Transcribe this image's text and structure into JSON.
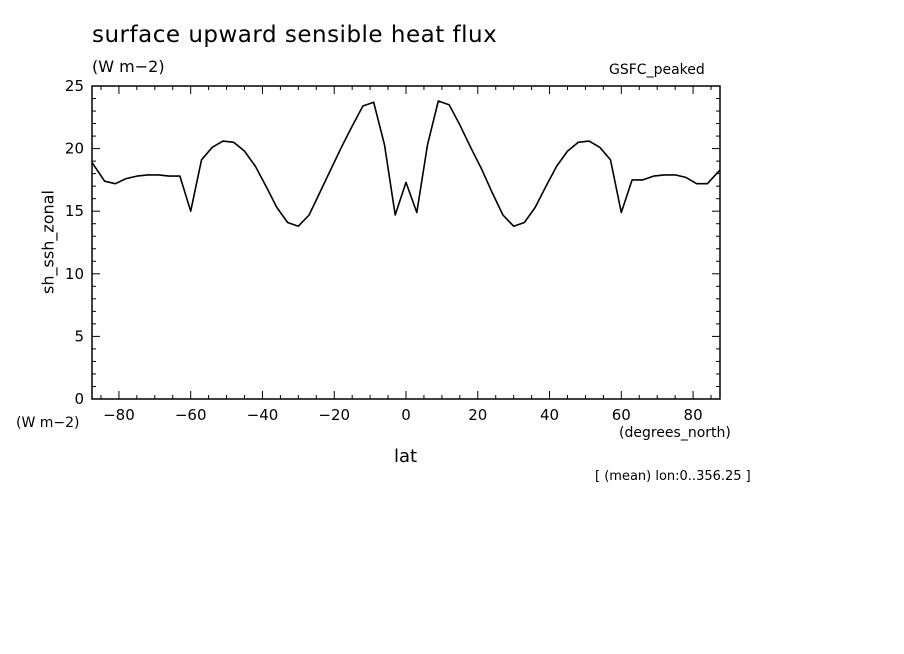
{
  "chart_data": {
    "type": "line",
    "title": "surface upward sensible heat flux",
    "units_label": "(W m−2)",
    "units_label_left": "(W m−2)",
    "dataset_label": "GSFC_peaked",
    "ylabel": "sh_ssh_zonal",
    "xlabel": "lat",
    "x_units_label": "(degrees_north)",
    "footnote": "[ (mean) lon:0..356.25 ]",
    "xlim": [
      -87.5,
      87.5
    ],
    "ylim": [
      0,
      25
    ],
    "x_ticks": [
      -80,
      -60,
      -40,
      -20,
      0,
      20,
      40,
      60,
      80
    ],
    "x_tick_labels": [
      "−80",
      "−60",
      "−40",
      "−20",
      "0",
      "20",
      "40",
      "60",
      "80"
    ],
    "y_ticks": [
      0,
      5,
      10,
      15,
      20,
      25
    ],
    "y_tick_labels": [
      "0",
      "5",
      "10",
      "15",
      "20",
      "25"
    ],
    "grid": false,
    "series": [
      {
        "line_color": "#000000",
        "x": [
          -87.5,
          -84,
          -81,
          -78,
          -75,
          -72,
          -69,
          -66,
          -63,
          -60,
          -57,
          -54,
          -51,
          -48,
          -45,
          -42,
          -39,
          -36,
          -33,
          -30,
          -27,
          -24,
          -21,
          -18,
          -15,
          -12,
          -9,
          -6,
          -3,
          0,
          3,
          6,
          9,
          12,
          15,
          18,
          21,
          24,
          27,
          30,
          33,
          36,
          39,
          42,
          45,
          48,
          51,
          54,
          57,
          60,
          63,
          66,
          69,
          72,
          75,
          78,
          81,
          84,
          87.5
        ],
        "values": [
          18.9,
          17.4,
          17.2,
          17.6,
          17.8,
          17.9,
          17.9,
          17.8,
          17.8,
          15.0,
          19.1,
          20.1,
          20.6,
          20.5,
          19.8,
          18.6,
          17.0,
          15.3,
          14.1,
          13.8,
          14.7,
          16.5,
          18.3,
          20.1,
          21.8,
          23.4,
          23.7,
          20.3,
          14.7,
          17.3,
          14.9,
          20.3,
          23.8,
          23.5,
          21.9,
          20.1,
          18.4,
          16.5,
          14.7,
          13.8,
          14.1,
          15.3,
          17.0,
          18.6,
          19.8,
          20.5,
          20.6,
          20.1,
          19.1,
          14.9,
          17.5,
          17.5,
          17.8,
          17.9,
          17.9,
          17.7,
          17.2,
          17.2,
          18.3
        ]
      }
    ]
  }
}
